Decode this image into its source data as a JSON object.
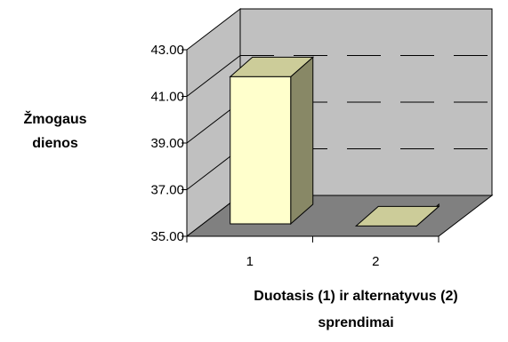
{
  "chart_data": {
    "type": "bar",
    "style": "3d-column",
    "categories": [
      "1",
      "2"
    ],
    "values": [
      42.3,
      35.9
    ],
    "ylim": [
      35.0,
      43.0
    ],
    "yticks": [
      "35.00",
      "37.00",
      "39.00",
      "41.00",
      "43.00"
    ],
    "ylabel_lines": [
      "Žmogaus",
      "dienos"
    ],
    "xlabel_lines": [
      "Duotasis (1)  ir alternatyvus (2)",
      "sprendimai"
    ],
    "grid": true,
    "legend": "none",
    "colors": {
      "bar_front": "#FFFFCC",
      "bar_top": "#CCCC99",
      "bar_side": "#888866",
      "back_wall": "#C0C0C0",
      "floor": "#808080"
    }
  }
}
